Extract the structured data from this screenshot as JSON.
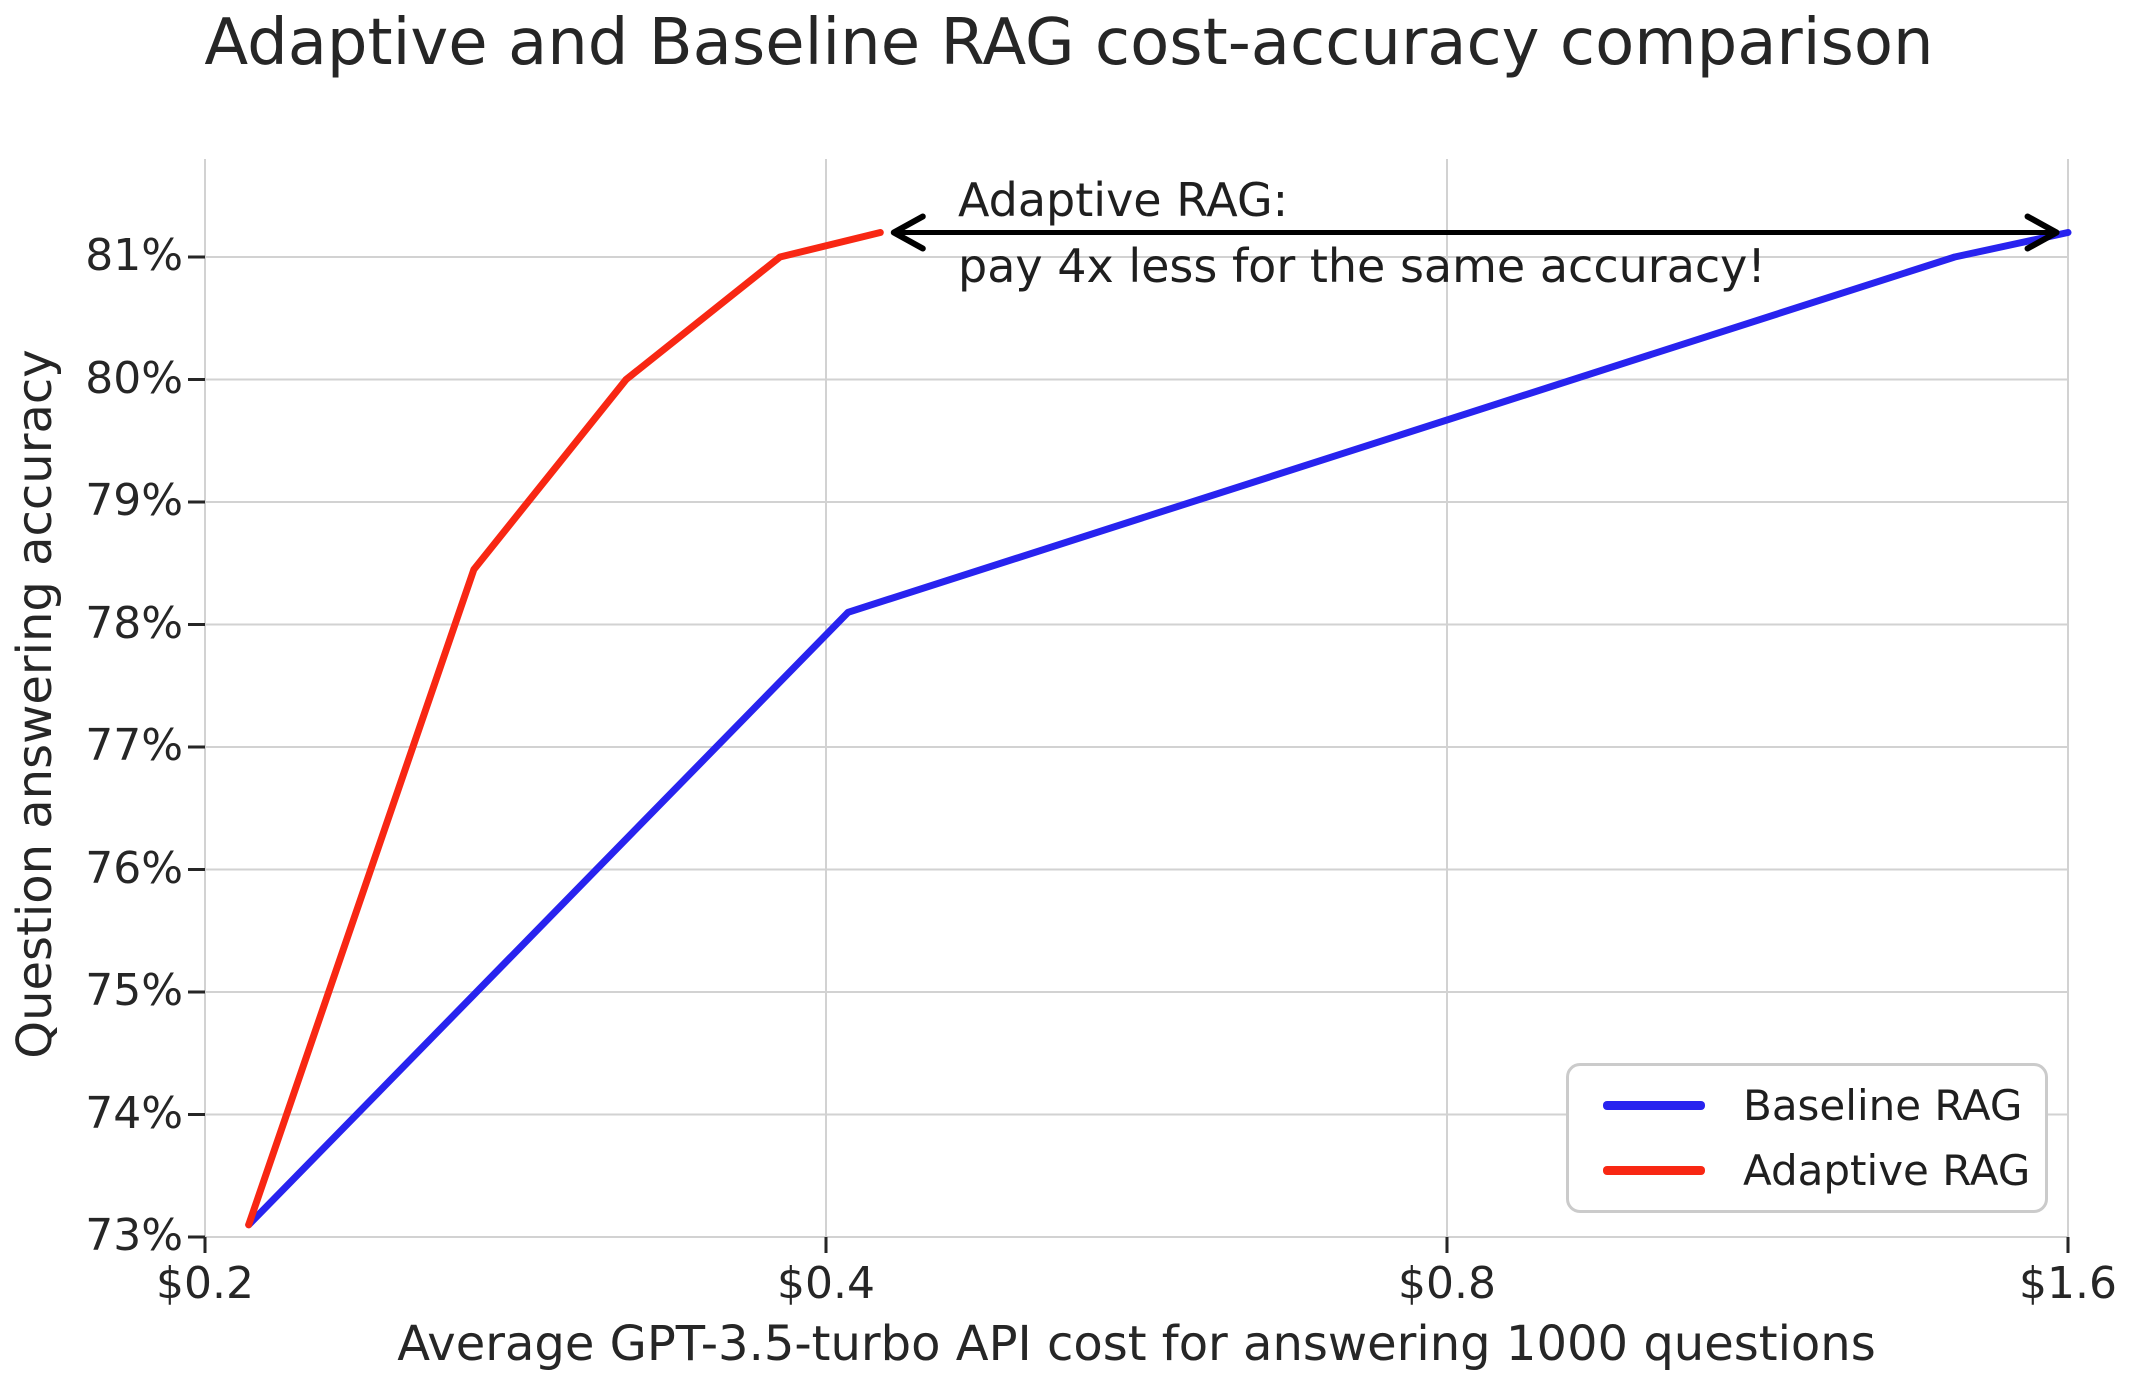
{
  "chart_data": {
    "type": "line",
    "title": "Adaptive and Baseline RAG cost-accuracy comparison",
    "xlabel": "Average GPT-3.5-turbo API cost for answering 1000 questions",
    "ylabel": "Question answering accuracy",
    "x_scale": "log2",
    "xlim": [
      0.2,
      1.6
    ],
    "ylim": [
      73.0,
      81.8
    ],
    "grid": true,
    "x_ticks": [
      0.2,
      0.4,
      0.8,
      1.6
    ],
    "x_tick_labels": [
      "$0.2",
      "$0.4",
      "$0.8",
      "$1.6"
    ],
    "y_ticks": [
      73,
      74,
      75,
      76,
      77,
      78,
      79,
      80,
      81
    ],
    "y_tick_labels": [
      "73%",
      "74%",
      "75%",
      "76%",
      "77%",
      "78%",
      "79%",
      "80%",
      "81%"
    ],
    "legend_position": "lower right",
    "series": [
      {
        "name": "Baseline RAG",
        "color": "#2823ef",
        "points": [
          [
            0.21,
            73.1
          ],
          [
            0.41,
            78.1
          ],
          [
            1.41,
            81.0
          ],
          [
            1.6,
            81.2
          ]
        ]
      },
      {
        "name": "Adaptive RAG",
        "color": "#f82713",
        "points": [
          [
            0.21,
            73.1
          ],
          [
            0.27,
            78.45
          ],
          [
            0.32,
            80.0
          ],
          [
            0.38,
            81.0
          ],
          [
            0.425,
            81.2
          ]
        ]
      }
    ],
    "annotation": {
      "line1": "Adaptive RAG:",
      "line2": "pay 4x less for the same accuracy!",
      "arrow": {
        "y": 81.2,
        "x_start": 0.43,
        "x_end": 1.585
      }
    },
    "style": {
      "grid_color": "#d2d2d2",
      "tick_color": "#262626",
      "text_color": "#262626",
      "arrow_color": "#000000",
      "background": "#ffffff"
    }
  }
}
